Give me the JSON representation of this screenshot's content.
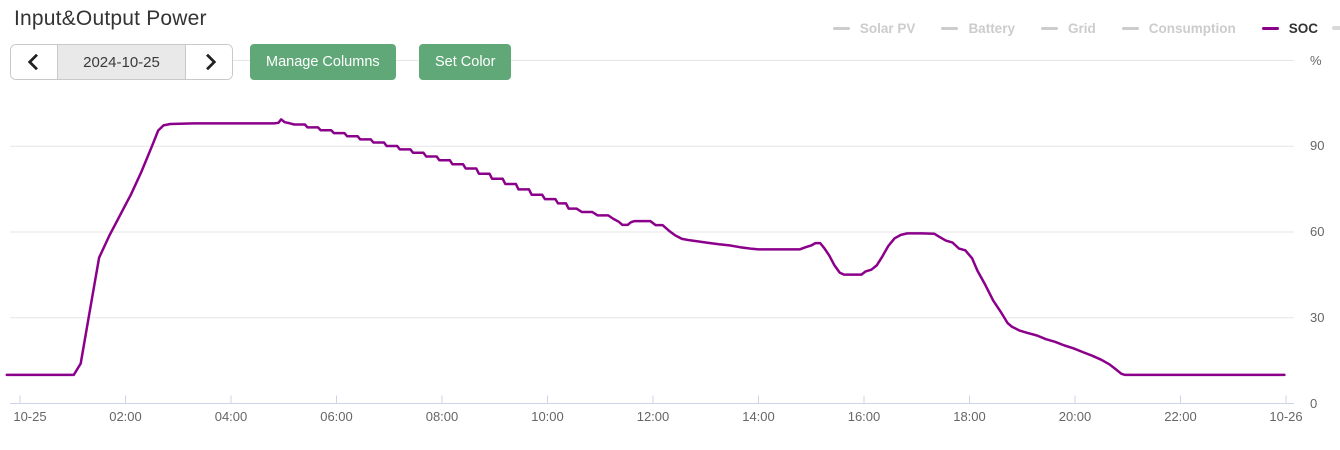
{
  "header": {
    "title": "Input&Output Power"
  },
  "toolbar": {
    "prev_icon": "chevron-left",
    "next_icon": "chevron-right",
    "date_value": "2024-10-25",
    "manage_columns_label": "Manage Columns",
    "set_color_label": "Set Color",
    "button_color": "#60A878"
  },
  "chart_data": {
    "type": "line",
    "title": "Input&Output Power",
    "unit_label": "%",
    "legend_position": "top-right",
    "grid": "horizontal-only",
    "grid_color": "#e6e6e6",
    "axis_color": "#ccd6eb",
    "label_color": "#666666",
    "x_axis": {
      "ticks": [
        {
          "hour": 0,
          "label": "10-25"
        },
        {
          "hour": 2,
          "label": "02:00"
        },
        {
          "hour": 4,
          "label": "04:00"
        },
        {
          "hour": 6,
          "label": "06:00"
        },
        {
          "hour": 8,
          "label": "08:00"
        },
        {
          "hour": 10,
          "label": "10:00"
        },
        {
          "hour": 12,
          "label": "12:00"
        },
        {
          "hour": 14,
          "label": "14:00"
        },
        {
          "hour": 16,
          "label": "16:00"
        },
        {
          "hour": 18,
          "label": "18:00"
        },
        {
          "hour": 20,
          "label": "20:00"
        },
        {
          "hour": 22,
          "label": "22:00"
        },
        {
          "hour": 24,
          "label": "10-26"
        }
      ]
    },
    "y_axis": {
      "min": 0,
      "max": 120,
      "ticks": [
        0,
        30,
        60,
        90
      ],
      "unit_label": "%"
    },
    "series": [
      {
        "name": "Solar PV",
        "color": "#cccccc",
        "enabled": false,
        "points": []
      },
      {
        "name": "Battery",
        "color": "#cccccc",
        "enabled": false,
        "points": []
      },
      {
        "name": "Grid",
        "color": "#cccccc",
        "enabled": false,
        "points": []
      },
      {
        "name": "Consumption",
        "color": "#cccccc",
        "enabled": false,
        "points": []
      },
      {
        "name": "SOC",
        "color": "#8B008B",
        "enabled": true,
        "points": [
          [
            -0.25,
            10
          ],
          [
            0.5,
            10
          ],
          [
            1.02,
            10
          ],
          [
            1.15,
            14
          ],
          [
            1.3,
            30
          ],
          [
            1.5,
            51
          ],
          [
            1.7,
            59
          ],
          [
            1.9,
            66
          ],
          [
            2.1,
            73
          ],
          [
            2.3,
            81
          ],
          [
            2.5,
            90
          ],
          [
            2.62,
            95.5
          ],
          [
            2.72,
            97.3
          ],
          [
            2.85,
            97.8
          ],
          [
            3.3,
            98
          ],
          [
            3.8,
            98
          ],
          [
            4.3,
            98
          ],
          [
            4.82,
            98
          ],
          [
            4.9,
            98.2
          ],
          [
            4.95,
            99.4
          ],
          [
            5.02,
            98.4
          ],
          [
            5.12,
            98
          ],
          [
            5.2,
            97.6
          ],
          [
            5.4,
            97.6
          ],
          [
            5.45,
            96.6
          ],
          [
            5.65,
            96.6
          ],
          [
            5.7,
            95.6
          ],
          [
            5.9,
            95.6
          ],
          [
            5.95,
            94.6
          ],
          [
            6.15,
            94.6
          ],
          [
            6.2,
            93.5
          ],
          [
            6.4,
            93.5
          ],
          [
            6.45,
            92.4
          ],
          [
            6.65,
            92.4
          ],
          [
            6.7,
            91.3
          ],
          [
            6.9,
            91.3
          ],
          [
            6.95,
            90.1
          ],
          [
            7.15,
            90.1
          ],
          [
            7.2,
            88.9
          ],
          [
            7.4,
            88.9
          ],
          [
            7.45,
            87.7
          ],
          [
            7.65,
            87.7
          ],
          [
            7.7,
            86.4
          ],
          [
            7.9,
            86.4
          ],
          [
            7.95,
            85.1
          ],
          [
            8.15,
            85.1
          ],
          [
            8.2,
            83.7
          ],
          [
            8.4,
            83.7
          ],
          [
            8.45,
            82.2
          ],
          [
            8.65,
            82.2
          ],
          [
            8.7,
            80.4
          ],
          [
            8.9,
            80.4
          ],
          [
            8.95,
            78.6
          ],
          [
            9.15,
            78.6
          ],
          [
            9.2,
            76.8
          ],
          [
            9.4,
            76.8
          ],
          [
            9.45,
            74.9
          ],
          [
            9.65,
            74.9
          ],
          [
            9.7,
            73
          ],
          [
            9.9,
            73
          ],
          [
            9.95,
            71.5
          ],
          [
            10.15,
            71.5
          ],
          [
            10.2,
            70
          ],
          [
            10.35,
            70
          ],
          [
            10.4,
            68.2
          ],
          [
            10.55,
            68.2
          ],
          [
            10.65,
            67
          ],
          [
            10.85,
            67
          ],
          [
            10.95,
            65.8
          ],
          [
            11.15,
            65.8
          ],
          [
            11.25,
            64.6
          ],
          [
            11.35,
            63.6
          ],
          [
            11.42,
            62.5
          ],
          [
            11.52,
            62.5
          ],
          [
            11.58,
            63.4
          ],
          [
            11.65,
            63.8
          ],
          [
            11.95,
            63.8
          ],
          [
            12.05,
            62.4
          ],
          [
            12.18,
            62.4
          ],
          [
            12.3,
            60.5
          ],
          [
            12.42,
            58.8
          ],
          [
            12.55,
            57.6
          ],
          [
            12.7,
            57.1
          ],
          [
            12.85,
            56.7
          ],
          [
            13.05,
            56.2
          ],
          [
            13.25,
            55.7
          ],
          [
            13.45,
            55.3
          ],
          [
            13.65,
            54.7
          ],
          [
            13.85,
            54.2
          ],
          [
            14,
            53.9
          ],
          [
            14.35,
            53.9
          ],
          [
            14.78,
            53.9
          ],
          [
            14.88,
            54.6
          ],
          [
            15,
            55.3
          ],
          [
            15.08,
            56.1
          ],
          [
            15.17,
            56.1
          ],
          [
            15.25,
            54.3
          ],
          [
            15.34,
            51.8
          ],
          [
            15.44,
            48.3
          ],
          [
            15.54,
            45.8
          ],
          [
            15.62,
            45.1
          ],
          [
            15.95,
            45.1
          ],
          [
            16.03,
            46.2
          ],
          [
            16.14,
            46.8
          ],
          [
            16.24,
            48.3
          ],
          [
            16.34,
            51.2
          ],
          [
            16.46,
            55.1
          ],
          [
            16.58,
            57.8
          ],
          [
            16.7,
            59
          ],
          [
            16.82,
            59.5
          ],
          [
            17.1,
            59.5
          ],
          [
            17.33,
            59.4
          ],
          [
            17.42,
            58.4
          ],
          [
            17.55,
            57
          ],
          [
            17.68,
            56.3
          ],
          [
            17.8,
            54.2
          ],
          [
            17.92,
            53.6
          ],
          [
            18.05,
            50.8
          ],
          [
            18.15,
            46.5
          ],
          [
            18.3,
            41.5
          ],
          [
            18.45,
            36
          ],
          [
            18.6,
            31.8
          ],
          [
            18.72,
            28.2
          ],
          [
            18.8,
            26.9
          ],
          [
            18.95,
            25.5
          ],
          [
            19.1,
            24.7
          ],
          [
            19.28,
            23.8
          ],
          [
            19.45,
            22.5
          ],
          [
            19.62,
            21.6
          ],
          [
            19.8,
            20.3
          ],
          [
            19.97,
            19.3
          ],
          [
            20.15,
            18
          ],
          [
            20.33,
            16.7
          ],
          [
            20.5,
            15.3
          ],
          [
            20.65,
            13.7
          ],
          [
            20.78,
            11.9
          ],
          [
            20.88,
            10.4
          ],
          [
            20.95,
            10
          ],
          [
            21.5,
            10
          ],
          [
            22.3,
            10
          ],
          [
            23.2,
            10
          ],
          [
            23.97,
            10
          ]
        ]
      }
    ]
  }
}
